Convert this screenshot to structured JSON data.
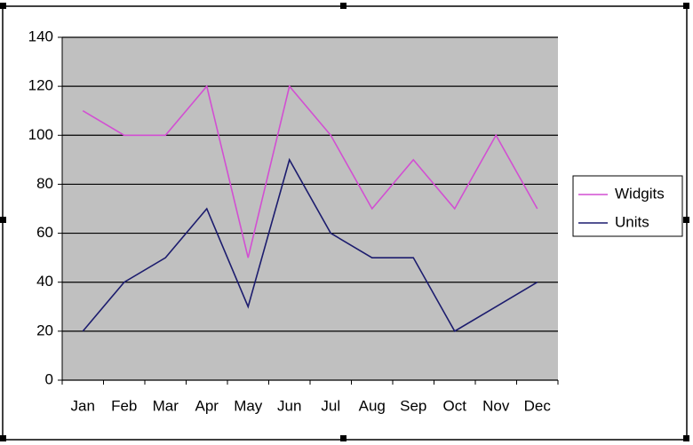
{
  "chart_data": {
    "type": "line",
    "categories": [
      "Jan",
      "Feb",
      "Mar",
      "Apr",
      "May",
      "Jun",
      "Jul",
      "Aug",
      "Sep",
      "Oct",
      "Nov",
      "Dec"
    ],
    "series": [
      {
        "name": "Widgits",
        "color": "#d24fd2",
        "values": [
          110,
          100,
          100,
          120,
          50,
          120,
          100,
          70,
          90,
          70,
          100,
          70
        ]
      },
      {
        "name": "Units",
        "color": "#1c1c6e",
        "values": [
          20,
          40,
          50,
          70,
          30,
          90,
          60,
          50,
          50,
          20,
          30,
          40
        ]
      }
    ],
    "ylim": [
      0,
      140
    ],
    "yticks": [
      0,
      20,
      40,
      60,
      80,
      100,
      120,
      140
    ],
    "grid": true,
    "legend": "right"
  }
}
